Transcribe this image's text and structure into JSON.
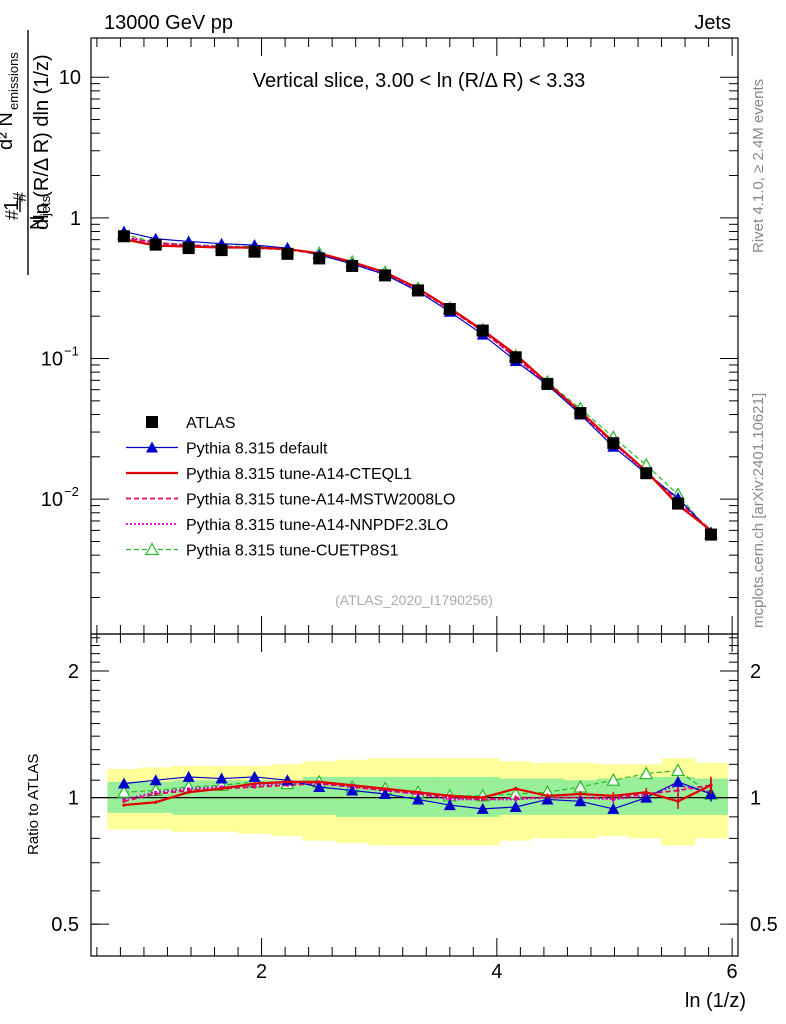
{
  "header": {
    "energy_label": "13000 GeV pp",
    "category_label": "Jets"
  },
  "side": {
    "rivet_label": "Rivet 4.1.0, ≥ 2.4M events",
    "mcplots_label": "mcplots.cern.ch [arXiv:2401.10621]"
  },
  "colors": {
    "default": "#0000cc",
    "cteql1": "#e00000",
    "mstw": "#e0006a",
    "nnpdf": "#d000d0",
    "cuetp8s1": "#22bb22",
    "band_inner": "#99ee99",
    "band_outer": "#ffff99"
  },
  "chart_data": [
    {
      "type": "line",
      "title": "Vertical slice, 3.00 < ln (R/Δ R) < 3.33",
      "watermark": "(ATLAS_2020_I1790256)",
      "ylabel": "1/N_jets d²N_emissions / dln(R/ΔR) dln(1/z)",
      "ylabel_parts": {
        "prefix": "1",
        "njets": "N",
        "njets_sub": "jets",
        "num": "d² N",
        "num_sub": "emissions",
        "den": "dln (R/Δ R) dln (1/z)"
      },
      "yscale": "log",
      "xlim": [
        0.55,
        6.05
      ],
      "ylim": [
        0.0011,
        19
      ],
      "yticks": [
        {
          "value": 10,
          "label": "10"
        },
        {
          "value": 1,
          "label": "1"
        },
        {
          "value": 0.1,
          "label": "10",
          "exp": "−1"
        },
        {
          "value": 0.01,
          "label": "10",
          "exp": "−2"
        }
      ],
      "x": [
        0.83,
        1.1,
        1.38,
        1.66,
        1.94,
        2.22,
        2.49,
        2.77,
        3.05,
        3.33,
        3.6,
        3.88,
        4.16,
        4.43,
        4.71,
        4.99,
        5.27,
        5.54,
        5.82
      ],
      "series": [
        {
          "name": "ATLAS",
          "key": "atlas",
          "values": [
            0.74,
            0.645,
            0.61,
            0.59,
            0.575,
            0.555,
            0.515,
            0.455,
            0.39,
            0.305,
            0.225,
            0.158,
            0.102,
            0.066,
            0.041,
            0.025,
            0.0153,
            0.0093,
            0.0056
          ]
        },
        {
          "name": "Pythia 8.315 default",
          "key": "default",
          "values": [
            0.8,
            0.71,
            0.68,
            0.655,
            0.64,
            0.61,
            0.545,
            0.47,
            0.395,
            0.3,
            0.215,
            0.148,
            0.096,
            0.065,
            0.04,
            0.0236,
            0.0152,
            0.0102,
            0.0058
          ]
        },
        {
          "name": "Pythia 8.315 tune-A14-CTEQL1",
          "key": "cteql1",
          "values": [
            0.705,
            0.635,
            0.625,
            0.615,
            0.615,
            0.6,
            0.56,
            0.485,
            0.41,
            0.315,
            0.228,
            0.159,
            0.107,
            0.067,
            0.042,
            0.0255,
            0.0158,
            0.0091,
            0.006
          ]
        },
        {
          "name": "Pythia 8.315 tune-A14-MSTW2008LO",
          "key": "mstw",
          "values": [
            0.725,
            0.66,
            0.635,
            0.62,
            0.61,
            0.595,
            0.555,
            0.48,
            0.405,
            0.31,
            0.224,
            0.156,
            0.102,
            0.066,
            0.041,
            0.0251,
            0.0157,
            0.0097,
            0.006
          ]
        },
        {
          "name": "Pythia 8.315 tune-A14-NNPDF2.3LO",
          "key": "nnpdf",
          "values": [
            0.735,
            0.665,
            0.64,
            0.625,
            0.615,
            0.6,
            0.555,
            0.48,
            0.405,
            0.31,
            0.224,
            0.157,
            0.101,
            0.066,
            0.041,
            0.0249,
            0.0155,
            0.01,
            0.0058
          ]
        },
        {
          "name": "Pythia 8.315 tune-CUETP8S1",
          "key": "cuetp8s1",
          "values": [
            0.765,
            0.67,
            0.645,
            0.63,
            0.625,
            0.6,
            0.56,
            0.485,
            0.41,
            0.315,
            0.227,
            0.16,
            0.104,
            0.068,
            0.044,
            0.0275,
            0.0175,
            0.0108,
            0.0057
          ]
        }
      ],
      "legend": [
        {
          "key": "atlas",
          "label": "ATLAS"
        },
        {
          "key": "default",
          "label": "Pythia 8.315 default"
        },
        {
          "key": "cteql1",
          "label": "Pythia 8.315 tune-A14-CTEQL1"
        },
        {
          "key": "mstw",
          "label": "Pythia 8.315 tune-A14-MSTW2008LO"
        },
        {
          "key": "nnpdf",
          "label": "Pythia 8.315 tune-A14-NNPDF2.3LO"
        },
        {
          "key": "cuetp8s1",
          "label": "Pythia 8.315 tune-CUETP8S1"
        }
      ]
    },
    {
      "type": "line",
      "title": "",
      "ylabel": "Ratio to ATLAS",
      "xlabel": "ln (1/z)",
      "yscale": "log",
      "xlim": [
        0.55,
        6.05
      ],
      "ylim": [
        0.42,
        2.45
      ],
      "xticks": [
        {
          "value": 2,
          "label": "2"
        },
        {
          "value": 4,
          "label": "4"
        },
        {
          "value": 6,
          "label": "6"
        }
      ],
      "yticks": [
        {
          "value": 2,
          "label": "2"
        },
        {
          "value": 1,
          "label": "1"
        },
        {
          "value": 0.5,
          "label": "0.5"
        }
      ],
      "bin_edges": [
        0.69,
        0.97,
        1.24,
        1.52,
        1.8,
        2.08,
        2.35,
        2.63,
        2.91,
        3.19,
        3.46,
        3.74,
        4.02,
        4.29,
        4.57,
        4.85,
        5.13,
        5.4,
        5.68,
        5.96
      ],
      "band_inner": [
        [
          0.92,
          1.09
        ],
        [
          0.92,
          1.09
        ],
        [
          0.91,
          1.1
        ],
        [
          0.91,
          1.1
        ],
        [
          0.91,
          1.1
        ],
        [
          0.91,
          1.1
        ],
        [
          0.91,
          1.12
        ],
        [
          0.9,
          1.12
        ],
        [
          0.9,
          1.12
        ],
        [
          0.9,
          1.12
        ],
        [
          0.9,
          1.12
        ],
        [
          0.9,
          1.12
        ],
        [
          0.91,
          1.11
        ],
        [
          0.91,
          1.11
        ],
        [
          0.91,
          1.1
        ],
        [
          0.91,
          1.11
        ],
        [
          0.91,
          1.12
        ],
        [
          0.91,
          1.12
        ],
        [
          0.91,
          1.11
        ]
      ],
      "band_outer": [
        [
          0.84,
          1.17
        ],
        [
          0.84,
          1.18
        ],
        [
          0.83,
          1.19
        ],
        [
          0.83,
          1.19
        ],
        [
          0.82,
          1.19
        ],
        [
          0.81,
          1.2
        ],
        [
          0.79,
          1.22
        ],
        [
          0.78,
          1.23
        ],
        [
          0.77,
          1.24
        ],
        [
          0.77,
          1.24
        ],
        [
          0.77,
          1.24
        ],
        [
          0.77,
          1.24
        ],
        [
          0.79,
          1.22
        ],
        [
          0.8,
          1.21
        ],
        [
          0.8,
          1.21
        ],
        [
          0.81,
          1.2
        ],
        [
          0.8,
          1.2
        ],
        [
          0.77,
          1.24
        ],
        [
          0.8,
          1.21
        ]
      ],
      "series": [
        {
          "name": "Pythia 8.315 default",
          "key": "default",
          "values": [
            1.08,
            1.1,
            1.12,
            1.11,
            1.12,
            1.1,
            1.06,
            1.04,
            1.02,
            0.99,
            0.96,
            0.94,
            0.95,
            0.99,
            0.98,
            0.94,
            1.0,
            1.09,
            1.02
          ],
          "errors": [
            0.005,
            0.005,
            0.005,
            0.005,
            0.005,
            0.006,
            0.006,
            0.007,
            0.007,
            0.008,
            0.009,
            0.01,
            0.012,
            0.014,
            0.016,
            0.02,
            0.025,
            0.03,
            0.04
          ]
        },
        {
          "name": "Pythia 8.315 tune-A14-CTEQL1",
          "key": "cteql1",
          "values": [
            0.96,
            0.975,
            1.03,
            1.05,
            1.08,
            1.09,
            1.09,
            1.07,
            1.05,
            1.03,
            1.01,
            1.0,
            1.05,
            1.01,
            1.02,
            1.01,
            1.03,
            0.98,
            1.07
          ],
          "errors": [
            0.005,
            0.005,
            0.005,
            0.005,
            0.005,
            0.006,
            0.006,
            0.007,
            0.007,
            0.008,
            0.009,
            0.01,
            0.012,
            0.014,
            0.016,
            0.02,
            0.025,
            0.04,
            0.05
          ]
        },
        {
          "name": "Pythia 8.315 tune-A14-MSTW2008LO",
          "key": "mstw",
          "values": [
            0.98,
            1.02,
            1.04,
            1.05,
            1.06,
            1.07,
            1.08,
            1.06,
            1.04,
            1.02,
            1.0,
            0.99,
            1.0,
            1.0,
            1.0,
            1.0,
            1.02,
            1.04,
            1.07
          ],
          "errors": [
            0.005,
            0.005,
            0.005,
            0.005,
            0.005,
            0.006,
            0.006,
            0.007,
            0.007,
            0.008,
            0.009,
            0.01,
            0.012,
            0.014,
            0.016,
            0.02,
            0.025,
            0.03,
            0.04
          ]
        },
        {
          "name": "Pythia 8.315 tune-A14-NNPDF2.3LO",
          "key": "nnpdf",
          "values": [
            0.99,
            1.03,
            1.05,
            1.06,
            1.07,
            1.08,
            1.08,
            1.06,
            1.04,
            1.02,
            0.99,
            0.99,
            0.99,
            1.0,
            1.0,
            0.99,
            1.01,
            1.07,
            1.03
          ],
          "errors": [
            0.005,
            0.005,
            0.005,
            0.005,
            0.005,
            0.006,
            0.006,
            0.007,
            0.007,
            0.008,
            0.009,
            0.01,
            0.012,
            0.014,
            0.016,
            0.02,
            0.025,
            0.03,
            0.04
          ]
        },
        {
          "name": "Pythia 8.315 tune-CUETP8S1",
          "key": "cuetp8s1",
          "values": [
            1.03,
            1.04,
            1.06,
            1.07,
            1.09,
            1.08,
            1.09,
            1.06,
            1.05,
            1.03,
            1.01,
            1.01,
            1.02,
            1.03,
            1.06,
            1.1,
            1.14,
            1.16,
            1.02
          ],
          "errors": [
            0.005,
            0.005,
            0.005,
            0.005,
            0.005,
            0.006,
            0.006,
            0.007,
            0.007,
            0.008,
            0.009,
            0.01,
            0.012,
            0.014,
            0.016,
            0.02,
            0.025,
            0.03,
            0.04
          ]
        }
      ]
    }
  ]
}
